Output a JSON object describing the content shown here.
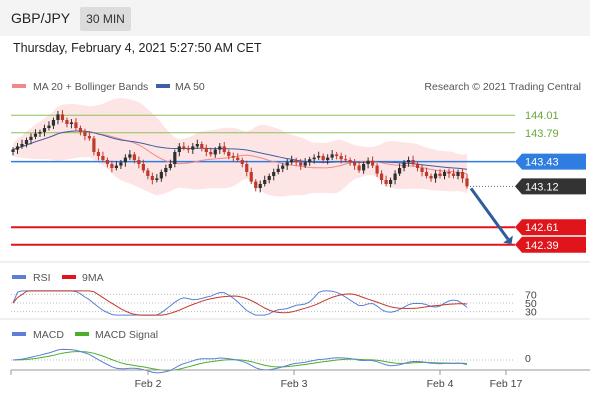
{
  "header": {
    "pair": "GBP/JPY",
    "timeframe": "30 MIN",
    "datetime": "Thursday, February 4, 2021 5:27:50 AM CET"
  },
  "legend": {
    "ma20": "MA 20 + Bollinger Bands",
    "ma50": "MA 50",
    "credit": "Research © 2021 Trading Central",
    "rsi": "RSI",
    "rsi_ma": "9MA",
    "macd": "MACD",
    "macd_signal": "MACD Signal"
  },
  "colors": {
    "ma20": "#f08a8a",
    "ma50": "#3c5fa8",
    "band_fill": "#fde0e0",
    "bull": "#2f2f2f",
    "bear": "#c0392b",
    "resistance": "#8dc05a",
    "pivot": "#2f7de1",
    "support": "#e0151b",
    "current": "#333333",
    "arrow": "#2d5d9a",
    "rsi_line": "#5b7fd6",
    "rsi_ma_line": "#c0392b",
    "macd_line": "#5b7fd6",
    "macd_signal_line": "#4caf2a"
  },
  "chart_data": [
    {
      "type": "candlestick",
      "ylim": [
        142.2,
        144.2
      ],
      "x_ticks": [
        "Feb 2",
        "Feb 3",
        "Feb 4",
        "Feb 17"
      ],
      "levels": [
        {
          "value": 144.01,
          "label": "144.01",
          "kind": "resistance"
        },
        {
          "value": 143.79,
          "label": "143.79",
          "kind": "resistance"
        },
        {
          "value": 143.43,
          "label": "143.43",
          "kind": "pivot"
        },
        {
          "value": 143.12,
          "label": "143.12",
          "kind": "current"
        },
        {
          "value": 142.61,
          "label": "142.61",
          "kind": "support"
        },
        {
          "value": 142.39,
          "label": "142.39",
          "kind": "support"
        }
      ],
      "close": [
        143.58,
        143.62,
        143.65,
        143.7,
        143.74,
        143.78,
        143.8,
        143.85,
        143.88,
        143.95,
        144.02,
        143.95,
        143.9,
        143.92,
        143.85,
        143.8,
        143.75,
        143.72,
        143.55,
        143.5,
        143.45,
        143.4,
        143.35,
        143.38,
        143.42,
        143.48,
        143.52,
        143.45,
        143.4,
        143.32,
        143.25,
        143.2,
        143.22,
        143.3,
        143.35,
        143.4,
        143.55,
        143.62,
        143.6,
        143.58,
        143.62,
        143.65,
        143.6,
        143.55,
        143.52,
        143.58,
        143.62,
        143.55,
        143.5,
        143.48,
        143.45,
        143.4,
        143.3,
        143.18,
        143.1,
        143.15,
        143.2,
        143.25,
        143.3,
        143.34,
        143.38,
        143.42,
        143.45,
        143.42,
        143.38,
        143.42,
        143.46,
        143.48,
        143.5,
        143.45,
        143.48,
        143.52,
        143.5,
        143.46,
        143.45,
        143.42,
        143.38,
        143.32,
        143.4,
        143.44,
        143.38,
        143.28,
        143.2,
        143.15,
        143.2,
        143.28,
        143.35,
        143.42,
        143.45,
        143.4,
        143.35,
        143.3,
        143.25,
        143.22,
        143.28,
        143.25,
        143.3,
        143.28,
        143.25,
        143.3,
        143.22,
        143.12
      ],
      "series": [
        {
          "name": "MA 20",
          "role": "ma20"
        },
        {
          "name": "MA 50",
          "role": "ma50"
        }
      ]
    },
    {
      "type": "line",
      "name": "RSI",
      "y_ticks": [
        "70",
        "50",
        "30"
      ],
      "ylim": [
        20,
        80
      ]
    },
    {
      "type": "line",
      "name": "MACD",
      "y_ticks": [
        "0"
      ]
    }
  ]
}
